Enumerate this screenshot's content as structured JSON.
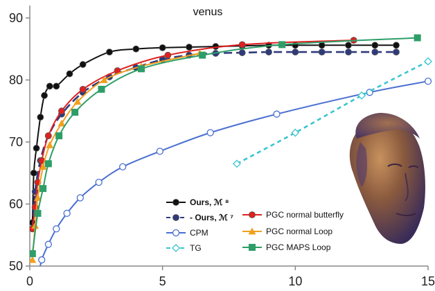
{
  "chart_data": {
    "type": "line",
    "title": "venus",
    "xlabel": "",
    "ylabel": "",
    "xlim": [
      0,
      15
    ],
    "ylim": [
      50,
      92
    ],
    "xticks": [
      0,
      5,
      10,
      15
    ],
    "yticks": [
      50,
      60,
      70,
      80,
      90
    ],
    "grid": false,
    "legend_position": "bottom-center",
    "series": [
      {
        "name": "Ours, ℳ ⁸",
        "color": "#111111",
        "marker": "circle-filled",
        "line": "solid",
        "x": [
          0.1,
          0.15,
          0.25,
          0.4,
          0.55,
          0.75,
          1.0,
          1.5,
          2.0,
          3.0,
          4.0,
          5.0,
          6.0,
          7.0,
          8.0,
          9.0,
          10.0,
          11.0,
          12.0,
          13.0,
          13.8
        ],
        "y": [
          57.0,
          65.0,
          69.0,
          74.0,
          77.5,
          79.0,
          79.0,
          81.0,
          82.5,
          84.5,
          85.0,
          85.2,
          85.3,
          85.4,
          85.5,
          85.6,
          85.6,
          85.6,
          85.6,
          85.6,
          85.6
        ]
      },
      {
        "name": "- Ours, ℳ ⁷",
        "color": "#2e3a7c",
        "marker": "circle-filled",
        "line": "dashed",
        "x": [
          0.1,
          0.2,
          0.4,
          0.7,
          1.2,
          2.0,
          3.0,
          4.0,
          5.0,
          6.0,
          7.0,
          8.0,
          9.0,
          10.0,
          11.0,
          12.0,
          13.0,
          13.8
        ],
        "y": [
          56.0,
          62.0,
          67.0,
          71.0,
          74.5,
          78.0,
          80.5,
          82.0,
          83.3,
          84.0,
          84.3,
          84.4,
          84.5,
          84.5,
          84.5,
          84.5,
          84.5,
          84.5
        ]
      },
      {
        "name": "CPM",
        "color": "#4a6fd0",
        "marker": "circle-open",
        "line": "solid",
        "x": [
          0.3,
          0.45,
          0.7,
          1.0,
          1.4,
          1.9,
          2.6,
          3.5,
          4.9,
          6.8,
          9.3,
          12.8,
          15.0
        ],
        "y": [
          48.0,
          51.0,
          53.5,
          56.0,
          58.5,
          61.0,
          63.5,
          66.0,
          68.5,
          71.5,
          74.5,
          78.0,
          79.8
        ]
      },
      {
        "name": "TG",
        "color": "#38c4d0",
        "marker": "diamond-open",
        "line": "dashed",
        "x": [
          7.8,
          10.0,
          12.5,
          15.0
        ],
        "y": [
          66.5,
          71.5,
          77.5,
          83.0
        ]
      },
      {
        "name": "PGC normal butterfly",
        "color": "#e02020",
        "marker": "circle-filled",
        "line": "solid",
        "x": [
          0.1,
          0.2,
          0.3,
          0.45,
          0.7,
          1.2,
          2.0,
          3.3,
          5.2,
          8.0,
          12.2
        ],
        "y": [
          56.0,
          59.5,
          63.5,
          67.0,
          71.0,
          75.0,
          78.5,
          81.5,
          84.0,
          85.7,
          86.4
        ]
      },
      {
        "name": "PGC normal Loop",
        "color": "#f0a020",
        "marker": "triangle-filled",
        "line": "solid",
        "x": [
          0.1,
          0.2,
          0.3,
          0.5,
          0.75,
          1.2,
          1.8,
          2.8,
          4.2,
          6.4
        ],
        "y": [
          51.0,
          56.5,
          61.0,
          66.0,
          69.5,
          73.0,
          76.5,
          80.0,
          82.2,
          84.3
        ]
      },
      {
        "name": "PGC MAPS Loop",
        "color": "#2e9e68",
        "marker": "square-filled",
        "line": "solid",
        "x": [
          0.1,
          0.3,
          0.5,
          0.7,
          1.1,
          1.7,
          2.7,
          4.2,
          6.5,
          9.5,
          14.6
        ],
        "y": [
          52.0,
          58.5,
          62.5,
          66.5,
          71.0,
          74.8,
          78.5,
          81.8,
          84.0,
          85.7,
          86.8
        ]
      }
    ]
  }
}
